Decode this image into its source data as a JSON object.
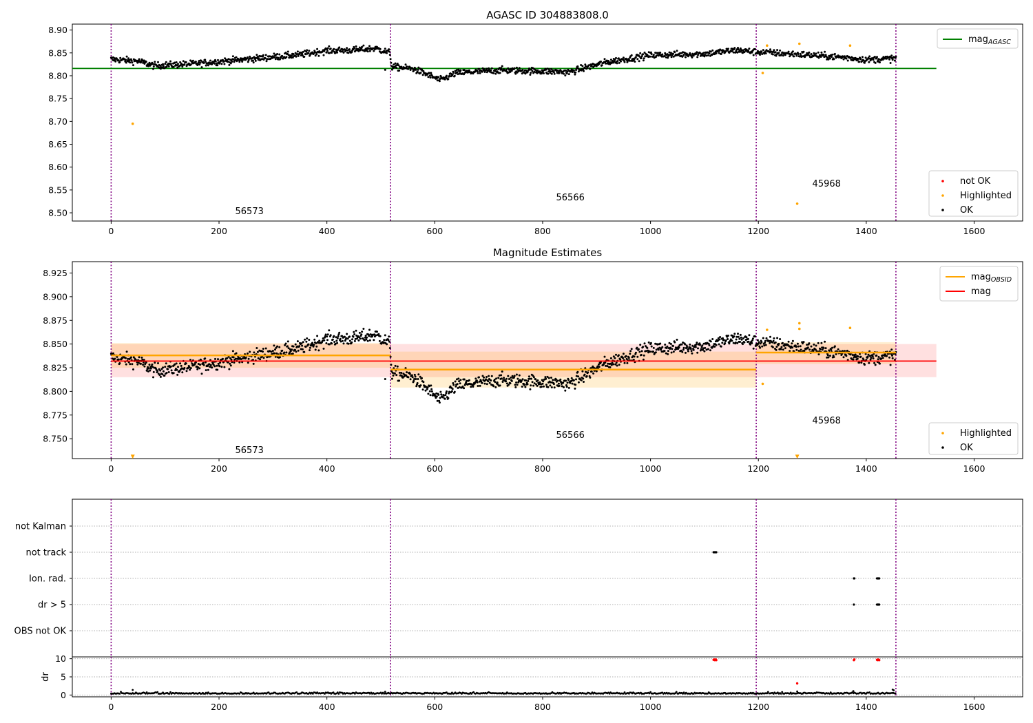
{
  "title": "AGASC ID 304883808.0",
  "colors": {
    "ok": "#000000",
    "highlighted": "#ffa500",
    "not_ok": "#ff0000",
    "agasc_line": "#008000",
    "obsid_line": "#ffa500",
    "mag_line": "#ff0000",
    "obs_boundary": "#800080"
  },
  "observations": {
    "boundaries": [
      0,
      518,
      1196,
      1455
    ],
    "labels": [
      "56573",
      "56566",
      "45968"
    ]
  },
  "chart_data": [
    {
      "type": "scatter",
      "title": "AGASC ID 304883808.0",
      "xlim": [
        -72,
        1690
      ],
      "ylim": [
        8.482,
        8.913
      ],
      "x_ticks": [
        0,
        200,
        400,
        600,
        800,
        1000,
        1200,
        1400,
        1600
      ],
      "y_ticks": [
        8.5,
        8.55,
        8.6,
        8.65,
        8.7,
        8.75,
        8.8,
        8.85,
        8.9
      ],
      "y_tick_labels": [
        "8.50",
        "8.55",
        "8.60",
        "8.65",
        "8.70",
        "8.75",
        "8.80",
        "8.85",
        "8.90"
      ],
      "agasc_mag": 8.816,
      "agasc_line_x": [
        -72,
        1530
      ],
      "trend": [
        [
          0,
          8.836
        ],
        [
          50,
          8.832
        ],
        [
          80,
          8.822
        ],
        [
          150,
          8.826
        ],
        [
          250,
          8.836
        ],
        [
          350,
          8.846
        ],
        [
          400,
          8.855
        ],
        [
          450,
          8.856
        ],
        [
          490,
          8.86
        ],
        [
          517,
          8.85
        ],
        [
          520,
          8.82
        ],
        [
          560,
          8.815
        ],
        [
          590,
          8.801
        ],
        [
          610,
          8.79
        ],
        [
          640,
          8.806
        ],
        [
          720,
          8.812
        ],
        [
          800,
          8.81
        ],
        [
          850,
          8.808
        ],
        [
          880,
          8.818
        ],
        [
          920,
          8.83
        ],
        [
          1000,
          8.845
        ],
        [
          1100,
          8.848
        ],
        [
          1160,
          8.856
        ],
        [
          1195,
          8.852
        ],
        [
          1200,
          8.852
        ],
        [
          1300,
          8.845
        ],
        [
          1360,
          8.84
        ],
        [
          1400,
          8.835
        ],
        [
          1455,
          8.838
        ]
      ],
      "highlighted": [
        [
          40,
          8.695
        ],
        [
          1208,
          8.806
        ],
        [
          1216,
          8.866
        ],
        [
          1272,
          8.52
        ],
        [
          1276,
          8.87
        ],
        [
          1370,
          8.866
        ]
      ],
      "obs_label_positions": [
        [
          230,
          8.497
        ],
        [
          825,
          8.527
        ],
        [
          1300,
          8.557
        ]
      ],
      "legend": {
        "position": "top-right",
        "entries": [
          {
            "label": "mag",
            "sub": "AGASC",
            "marker": "line",
            "color": "#008000"
          }
        ]
      },
      "legend2": {
        "position": "bottom-right",
        "entries": [
          {
            "label": "not OK",
            "marker": "dot",
            "color": "#ff0000"
          },
          {
            "label": "Highlighted",
            "marker": "dot",
            "color": "#ffa500"
          },
          {
            "label": "OK",
            "marker": "dot",
            "color": "#000000"
          }
        ]
      }
    },
    {
      "type": "scatter",
      "title": "Magnitude Estimates",
      "xlim": [
        -72,
        1690
      ],
      "ylim": [
        8.729,
        8.937
      ],
      "x_ticks": [
        0,
        200,
        400,
        600,
        800,
        1000,
        1200,
        1400,
        1600
      ],
      "y_ticks": [
        8.75,
        8.775,
        8.8,
        8.825,
        8.85,
        8.875,
        8.9,
        8.925
      ],
      "y_tick_labels": [
        "8.750",
        "8.775",
        "8.800",
        "8.825",
        "8.850",
        "8.875",
        "8.900",
        "8.925"
      ],
      "mag": 8.832,
      "mag_band": [
        8.815,
        8.85
      ],
      "mag_line_x": [
        0,
        1530
      ],
      "obsid_segments": [
        {
          "x": [
            0,
            518
          ],
          "mag": 8.838,
          "band": [
            8.825,
            8.851
          ]
        },
        {
          "x": [
            518,
            1196
          ],
          "mag": 8.823,
          "band": [
            8.804,
            8.842
          ]
        },
        {
          "x": [
            1196,
            1455
          ],
          "mag": 8.841,
          "band": [
            8.829,
            8.852
          ]
        }
      ],
      "highlighted": [
        [
          1208,
          8.808
        ],
        [
          1216,
          8.865
        ],
        [
          1276,
          8.872
        ],
        [
          1276,
          8.866
        ],
        [
          1370,
          8.867
        ]
      ],
      "clipped_markers": [
        [
          40,
          8.731
        ],
        [
          1272,
          8.731
        ]
      ],
      "obs_label_positions": [
        [
          230,
          8.735
        ],
        [
          825,
          8.751
        ],
        [
          1300,
          8.766
        ]
      ],
      "legend": {
        "position": "top-right",
        "entries": [
          {
            "label": "mag",
            "sub": "OBSID",
            "marker": "line",
            "color": "#ffa500"
          },
          {
            "label": "mag",
            "marker": "line",
            "color": "#ff0000"
          }
        ]
      },
      "legend2": {
        "position": "bottom-right",
        "entries": [
          {
            "label": "Highlighted",
            "marker": "dot",
            "color": "#ffa500"
          },
          {
            "label": "OK",
            "marker": "dot",
            "color": "#000000"
          }
        ]
      }
    },
    {
      "type": "scatter",
      "title": "",
      "xlim": [
        -72,
        1690
      ],
      "flag_labels": [
        "not Kalman",
        "not track",
        "Ion. rad.",
        "dr > 5",
        "OBS not OK"
      ],
      "flag_marks": [
        {
          "flag": "not track",
          "x": [
            1117,
            1118,
            1119,
            1120,
            1121,
            1122
          ]
        },
        {
          "flag": "Ion. rad.",
          "x": [
            1377,
            1378,
            1420,
            1421,
            1422,
            1423,
            1424
          ]
        },
        {
          "flag": "dr > 5",
          "x": [
            1377,
            1420,
            1421,
            1422,
            1423,
            1424
          ]
        }
      ]
    },
    {
      "type": "scatter",
      "title": "",
      "ylabel": "dr",
      "xlim": [
        -72,
        1690
      ],
      "ylim": [
        -0.5,
        10.5
      ],
      "x_ticks": [
        0,
        200,
        400,
        600,
        800,
        1000,
        1200,
        1400,
        1600
      ],
      "y_ticks": [
        0,
        5,
        10
      ],
      "y_tick_labels": [
        "0",
        "5",
        "10"
      ],
      "red_points": [
        [
          1117,
          9.7
        ],
        [
          1118,
          9.8
        ],
        [
          1119,
          9.6
        ],
        [
          1120,
          9.7
        ],
        [
          1121,
          9.8
        ],
        [
          1122,
          9.6
        ],
        [
          1272,
          3.2
        ],
        [
          1377,
          9.6
        ],
        [
          1378,
          9.8
        ],
        [
          1420,
          9.7
        ],
        [
          1421,
          9.6
        ],
        [
          1422,
          9.8
        ],
        [
          1423,
          9.7
        ],
        [
          1424,
          9.6
        ]
      ],
      "spikes": [
        [
          40,
          1.4
        ],
        [
          508,
          0.9
        ],
        [
          1272,
          1.0
        ],
        [
          1376,
          1.1
        ],
        [
          1449,
          1.5
        ],
        [
          1451,
          1.3
        ]
      ]
    }
  ]
}
